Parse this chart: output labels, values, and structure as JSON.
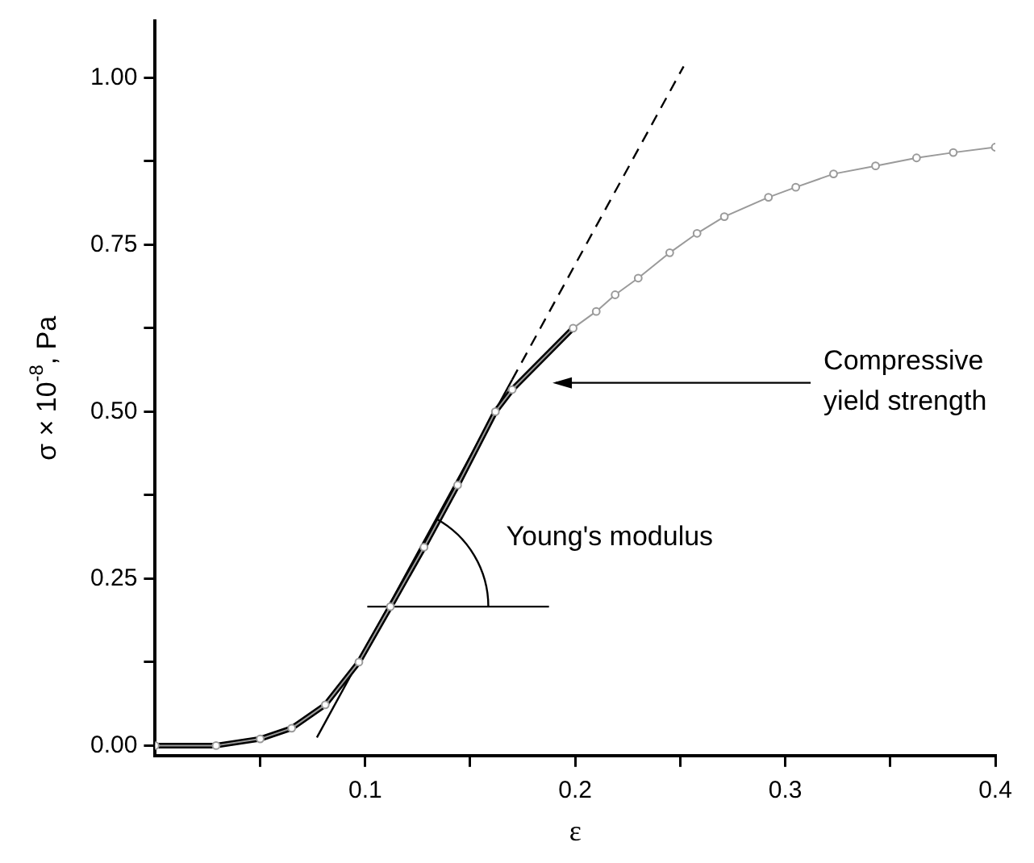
{
  "chart_data": {
    "type": "line",
    "xlabel": "ε",
    "ylabel": "σ × 10$^{-8}$, Pa",
    "xlim": [
      0,
      0.4
    ],
    "ylim": [
      -0.015,
      1.085
    ],
    "xticks": [
      {
        "value": 0.05,
        "label": null
      },
      0.1,
      {
        "value": 0.15,
        "label": null
      },
      0.2,
      {
        "value": 0.25,
        "label": null
      },
      0.3,
      {
        "value": 0.35,
        "label": null
      },
      0.4
    ],
    "yticks": [
      {
        "value": 0,
        "label": "0.00"
      },
      {
        "value": 0.125,
        "label": null
      },
      {
        "value": 0.25,
        "label": "0.25"
      },
      {
        "value": 0.375,
        "label": null
      },
      {
        "value": 0.5,
        "label": "0.50"
      },
      {
        "value": 0.625,
        "label": null
      },
      {
        "value": 0.75,
        "label": "0.75"
      },
      {
        "value": 0.875,
        "label": null
      },
      {
        "value": 1,
        "label": "1.00"
      }
    ],
    "grid": false,
    "legend": false,
    "series": [
      {
        "marker": "circle",
        "color": "#9a9a9a",
        "x": [
          0,
          0.029,
          0.05,
          0.065,
          0.081,
          0.097,
          0.112,
          0.128,
          0.144,
          0.162,
          0.17,
          0.199,
          0.21,
          0.219,
          0.23,
          0.245,
          0.258,
          0.271,
          0.292,
          0.305,
          0.323,
          0.343,
          0.3625,
          0.38,
          0.4
        ],
        "values": [
          0,
          0,
          0.01,
          0.026,
          0.061,
          0.125,
          0.208,
          0.297,
          0.39,
          0.5,
          0.533,
          0.625,
          0.65,
          0.675,
          0.7,
          0.738,
          0.767,
          0.792,
          0.821,
          0.836,
          0.856,
          0.868,
          0.88,
          0.888,
          0.896
        ]
      },
      {
        "marker": "none",
        "color": "#000000",
        "x": [
          0,
          0.029,
          0.05,
          0.065,
          0.081,
          0.097,
          0.112,
          0.128,
          0.144,
          0.162,
          0.17,
          0.199
        ],
        "values": [
          0,
          0,
          0.01,
          0.026,
          0.061,
          0.125,
          0.208,
          0.297,
          0.39,
          0.5,
          0.533,
          0.625
        ]
      },
      {
        "marker": "none",
        "line_style": "solid",
        "color": "#000000",
        "x": [
          0.077,
          0.17
        ],
        "values": [
          0.012,
          0.548
        ]
      },
      {
        "marker": "none",
        "line_style": "dashed",
        "color": "#000000",
        "x": [
          0.17,
          0.2516
        ],
        "values": [
          0.548,
          1.017
        ]
      },
      {
        "marker": "none",
        "line_style": "solid",
        "color": "#000000",
        "x": [
          0.101,
          0.1875
        ],
        "values": [
          0.208,
          0.208
        ]
      }
    ],
    "annotations": [
      "Young's modulus",
      "Compressive yield strength"
    ]
  }
}
